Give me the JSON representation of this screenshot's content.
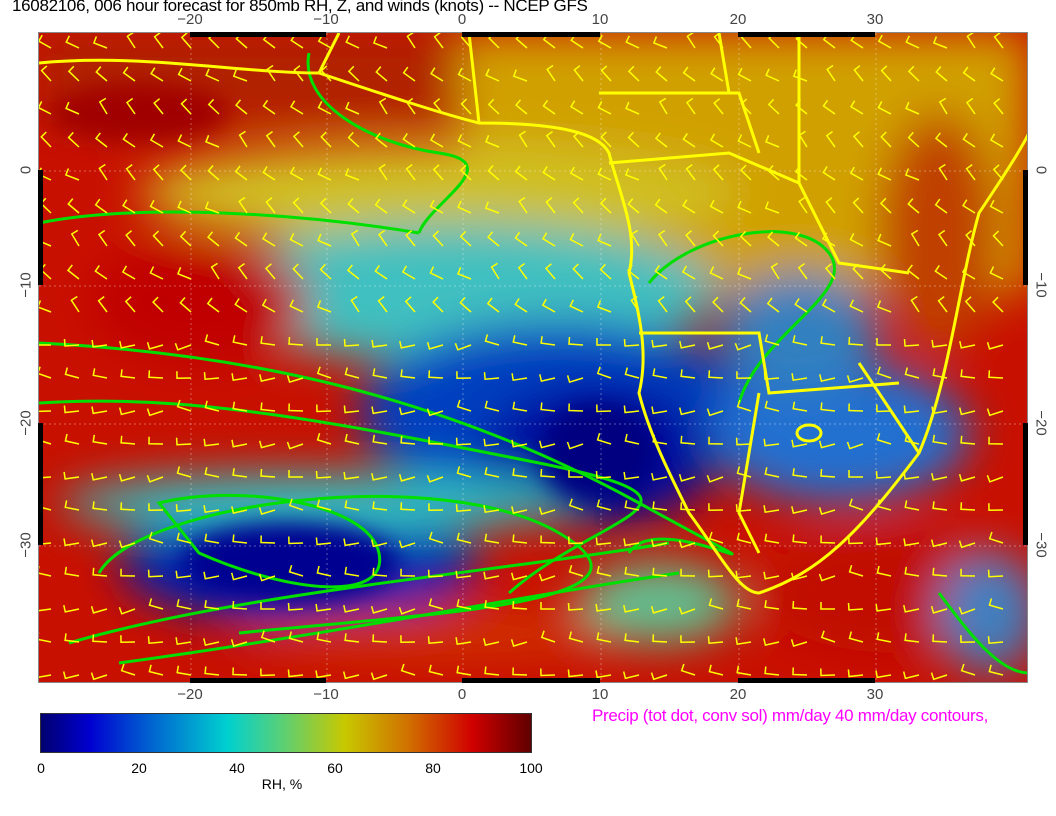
{
  "title": "16082106, 006 hour forecast for 850mb RH, Z, and winds (knots)  -- NCEP GFS",
  "map": {
    "lon_ticks": [
      "−20",
      "−10",
      "0",
      "10",
      "20",
      "30"
    ],
    "lat_ticks": [
      "0",
      "−10",
      "−20",
      "−30"
    ],
    "field": "RH",
    "contour_color": "#00e000",
    "coastline_color": "#ffff00",
    "barb_color": "#ffff00"
  },
  "colorbar": {
    "ticks": [
      "0",
      "20",
      "40",
      "60",
      "80",
      "100"
    ],
    "label": "RH, %"
  },
  "precip_note": "Precip (tot dot, conv sol) mm/day 40 mm/day contours,"
}
